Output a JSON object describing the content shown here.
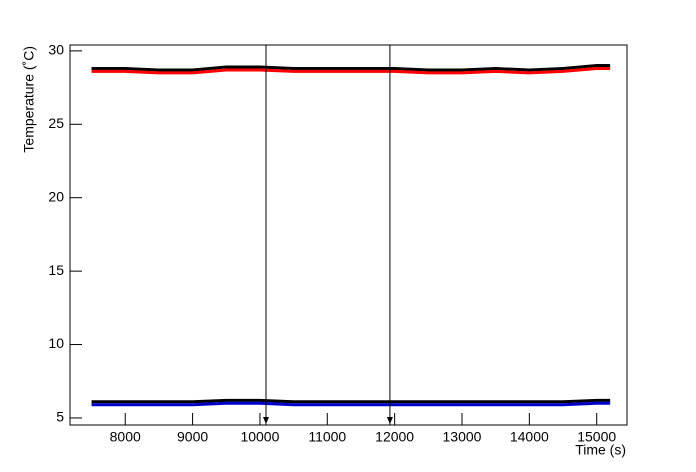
{
  "chart_data": {
    "type": "line",
    "x_label": "Time (s)",
    "y_label": "Temperature (˚C)",
    "x": [
      7500,
      8000,
      8500,
      9000,
      9500,
      10000,
      10500,
      11000,
      11500,
      12000,
      12500,
      13000,
      13500,
      14000,
      14500,
      15000,
      15200
    ],
    "series": [
      {
        "color": "#000000",
        "values": [
          28.8,
          28.8,
          28.7,
          28.7,
          28.9,
          28.9,
          28.8,
          28.8,
          28.8,
          28.8,
          28.7,
          28.7,
          28.8,
          28.7,
          28.8,
          29.0,
          29.0
        ]
      },
      {
        "color": "#ff0000",
        "values": [
          28.6,
          28.6,
          28.5,
          28.5,
          28.7,
          28.7,
          28.6,
          28.6,
          28.6,
          28.6,
          28.5,
          28.5,
          28.6,
          28.5,
          28.6,
          28.8,
          28.8
        ]
      },
      {
        "color": "#000000",
        "values": [
          6.1,
          6.1,
          6.1,
          6.1,
          6.2,
          6.2,
          6.1,
          6.1,
          6.1,
          6.1,
          6.1,
          6.1,
          6.1,
          6.1,
          6.1,
          6.2,
          6.2
        ]
      },
      {
        "color": "#0000cc",
        "values": [
          5.9,
          5.9,
          5.9,
          5.9,
          6.0,
          6.0,
          5.9,
          5.9,
          5.9,
          5.9,
          5.9,
          5.9,
          5.9,
          5.9,
          5.9,
          6.0,
          6.0
        ]
      }
    ],
    "vlines": [
      10090,
      11930
    ],
    "xlim": [
      7180,
      15450
    ],
    "ylim": [
      4.52,
      30.4
    ],
    "xticks": [
      8000,
      9000,
      10000,
      11000,
      12000,
      13000,
      14000,
      15000
    ],
    "yticks": [
      5,
      10,
      15,
      20,
      25,
      30
    ]
  }
}
